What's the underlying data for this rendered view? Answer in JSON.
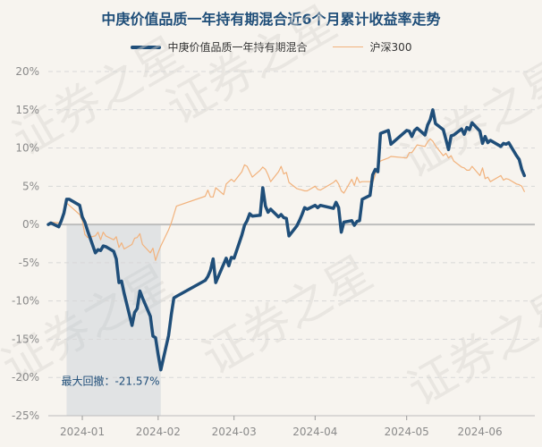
{
  "chart_data": {
    "type": "line",
    "title": "中庚价值品质一年持有期混合近6个月累计收益率走势",
    "ylim": [
      -25,
      20
    ],
    "yticks": [
      20,
      15,
      10,
      5,
      0,
      -5,
      -10,
      -15,
      -20,
      -25
    ],
    "ytick_labels": [
      "20%",
      "15%",
      "10%",
      "5%",
      "0%",
      "-5%",
      "-10%",
      "-15%",
      "-20%",
      "-25%"
    ],
    "xlim": [
      "2023-12-21",
      "2024-06-24"
    ],
    "xticks": [
      {
        "label": "2024-01",
        "date": "2024-01-03"
      },
      {
        "label": "2024-02",
        "date": "2024-02-01"
      },
      {
        "label": "2024-03",
        "date": "2024-03-01"
      },
      {
        "label": "2024-04",
        "date": "2024-04-01"
      },
      {
        "label": "2024-05",
        "date": "2024-05-06"
      },
      {
        "label": "2024-06",
        "date": "2024-06-03"
      }
    ],
    "series": [
      {
        "name": "中庚价值品质一年持有期混合",
        "color": "#1f4e79",
        "points": [
          [
            "2023-12-21",
            0.0
          ],
          [
            "2023-12-22",
            0.2
          ],
          [
            "2023-12-25",
            -0.3
          ],
          [
            "2023-12-26",
            0.5
          ],
          [
            "2023-12-27",
            1.5
          ],
          [
            "2023-12-28",
            3.3
          ],
          [
            "2023-12-29",
            3.3
          ],
          [
            "2024-01-02",
            2.5
          ],
          [
            "2024-01-03",
            1.0
          ],
          [
            "2024-01-04",
            0.3
          ],
          [
            "2024-01-05",
            -0.8
          ],
          [
            "2024-01-08",
            -3.7
          ],
          [
            "2024-01-09",
            -3.3
          ],
          [
            "2024-01-10",
            -3.4
          ],
          [
            "2024-01-11",
            -2.8
          ],
          [
            "2024-01-12",
            -2.9
          ],
          [
            "2024-01-15",
            -3.5
          ],
          [
            "2024-01-16",
            -4.5
          ],
          [
            "2024-01-17",
            -7.6
          ],
          [
            "2024-01-18",
            -7.4
          ],
          [
            "2024-01-19",
            -9.0
          ],
          [
            "2024-01-22",
            -13.2
          ],
          [
            "2024-01-23",
            -11.5
          ],
          [
            "2024-01-24",
            -11.0
          ],
          [
            "2024-01-25",
            -8.7
          ],
          [
            "2024-01-26",
            -9.6
          ],
          [
            "2024-01-29",
            -12.0
          ],
          [
            "2024-01-30",
            -14.6
          ],
          [
            "2024-01-31",
            -14.8
          ],
          [
            "2024-02-01",
            -17.0
          ],
          [
            "2024-02-02",
            -19.0
          ],
          [
            "2024-02-05",
            -14.5
          ],
          [
            "2024-02-06",
            -11.8
          ],
          [
            "2024-02-07",
            -9.6
          ],
          [
            "2024-02-08",
            -9.4
          ],
          [
            "2024-02-19",
            -7.3
          ],
          [
            "2024-02-20",
            -6.8
          ],
          [
            "2024-02-21",
            -6.0
          ],
          [
            "2024-02-22",
            -4.5
          ],
          [
            "2024-02-23",
            -7.6
          ],
          [
            "2024-02-26",
            -5.2
          ],
          [
            "2024-02-27",
            -4.4
          ],
          [
            "2024-02-28",
            -5.4
          ],
          [
            "2024-02-29",
            -4.3
          ],
          [
            "2024-03-01",
            -4.4
          ],
          [
            "2024-03-04",
            -1.4
          ],
          [
            "2024-03-05",
            -0.1
          ],
          [
            "2024-03-06",
            0.5
          ],
          [
            "2024-03-07",
            1.4
          ],
          [
            "2024-03-08",
            1.1
          ],
          [
            "2024-03-11",
            1.2
          ],
          [
            "2024-03-12",
            4.8
          ],
          [
            "2024-03-13",
            2.4
          ],
          [
            "2024-03-14",
            1.6
          ],
          [
            "2024-03-15",
            2.0
          ],
          [
            "2024-03-18",
            1.0
          ],
          [
            "2024-03-19",
            1.3
          ],
          [
            "2024-03-20",
            0.9
          ],
          [
            "2024-03-21",
            0.8
          ],
          [
            "2024-03-22",
            -1.5
          ],
          [
            "2024-03-25",
            -0.2
          ],
          [
            "2024-03-26",
            0.5
          ],
          [
            "2024-03-27",
            1.3
          ],
          [
            "2024-03-28",
            2.2
          ],
          [
            "2024-03-29",
            2.0
          ],
          [
            "2024-04-01",
            2.5
          ],
          [
            "2024-04-02",
            2.2
          ],
          [
            "2024-04-03",
            2.5
          ],
          [
            "2024-04-08",
            2.1
          ],
          [
            "2024-04-09",
            2.9
          ],
          [
            "2024-04-10",
            2.2
          ],
          [
            "2024-04-11",
            -1.0
          ],
          [
            "2024-04-12",
            0.3
          ],
          [
            "2024-04-15",
            0.5
          ],
          [
            "2024-04-16",
            -0.1
          ],
          [
            "2024-04-17",
            0.4
          ],
          [
            "2024-04-18",
            0.5
          ],
          [
            "2024-04-19",
            3.3
          ],
          [
            "2024-04-22",
            3.8
          ],
          [
            "2024-04-23",
            6.5
          ],
          [
            "2024-04-24",
            7.2
          ],
          [
            "2024-04-25",
            6.9
          ],
          [
            "2024-04-26",
            11.9
          ],
          [
            "2024-04-29",
            12.3
          ],
          [
            "2024-04-30",
            10.5
          ],
          [
            "2024-05-06",
            12.3
          ],
          [
            "2024-05-07",
            12.2
          ],
          [
            "2024-05-08",
            11.5
          ],
          [
            "2024-05-09",
            12.3
          ],
          [
            "2024-05-10",
            12.6
          ],
          [
            "2024-05-13",
            11.7
          ],
          [
            "2024-05-14",
            13.0
          ],
          [
            "2024-05-15",
            13.7
          ],
          [
            "2024-05-16",
            15.0
          ],
          [
            "2024-05-17",
            13.2
          ],
          [
            "2024-05-20",
            12.4
          ],
          [
            "2024-05-21",
            11.1
          ],
          [
            "2024-05-22",
            9.8
          ],
          [
            "2024-05-23",
            11.6
          ],
          [
            "2024-05-24",
            11.7
          ],
          [
            "2024-05-27",
            12.5
          ],
          [
            "2024-05-28",
            11.8
          ],
          [
            "2024-05-29",
            12.7
          ],
          [
            "2024-05-30",
            12.4
          ],
          [
            "2024-05-31",
            13.3
          ],
          [
            "2024-06-03",
            12.2
          ],
          [
            "2024-06-04",
            10.6
          ],
          [
            "2024-06-05",
            11.5
          ],
          [
            "2024-06-06",
            10.7
          ],
          [
            "2024-06-07",
            11.0
          ],
          [
            "2024-06-11",
            10.2
          ],
          [
            "2024-06-12",
            10.6
          ],
          [
            "2024-06-13",
            10.5
          ],
          [
            "2024-06-14",
            10.7
          ],
          [
            "2024-06-17",
            9.0
          ],
          [
            "2024-06-18",
            8.5
          ],
          [
            "2024-06-19",
            7.2
          ],
          [
            "2024-06-20",
            6.4
          ]
        ]
      },
      {
        "name": "沪深300",
        "color": "#f2b27c",
        "points": [
          [
            "2023-12-21",
            0.0
          ],
          [
            "2023-12-22",
            0.3
          ],
          [
            "2023-12-25",
            0.2
          ],
          [
            "2023-12-26",
            0.6
          ],
          [
            "2023-12-27",
            2.0
          ],
          [
            "2023-12-28",
            2.8
          ],
          [
            "2023-12-29",
            2.5
          ],
          [
            "2024-01-02",
            1.3
          ],
          [
            "2024-01-03",
            0.5
          ],
          [
            "2024-01-04",
            -1.3
          ],
          [
            "2024-01-05",
            -1.7
          ],
          [
            "2024-01-08",
            -1.5
          ],
          [
            "2024-01-09",
            -1.0
          ],
          [
            "2024-01-10",
            -2.0
          ],
          [
            "2024-01-11",
            -1.0
          ],
          [
            "2024-01-12",
            -1.5
          ],
          [
            "2024-01-15",
            -2.0
          ],
          [
            "2024-01-16",
            -1.6
          ],
          [
            "2024-01-17",
            -3.0
          ],
          [
            "2024-01-18",
            -2.4
          ],
          [
            "2024-01-19",
            -3.2
          ],
          [
            "2024-01-22",
            -2.6
          ],
          [
            "2024-01-23",
            -1.8
          ],
          [
            "2024-01-24",
            -1.7
          ],
          [
            "2024-01-25",
            -1.2
          ],
          [
            "2024-01-26",
            -2.6
          ],
          [
            "2024-01-29",
            -3.7
          ],
          [
            "2024-01-30",
            -3.1
          ],
          [
            "2024-01-31",
            -4.7
          ],
          [
            "2024-02-01",
            -3.7
          ],
          [
            "2024-02-02",
            -2.8
          ],
          [
            "2024-02-05",
            -0.7
          ],
          [
            "2024-02-06",
            0.2
          ],
          [
            "2024-02-07",
            1.3
          ],
          [
            "2024-02-08",
            2.4
          ],
          [
            "2024-02-19",
            3.7
          ],
          [
            "2024-02-20",
            4.5
          ],
          [
            "2024-02-21",
            3.6
          ],
          [
            "2024-02-22",
            3.6
          ],
          [
            "2024-02-23",
            4.8
          ],
          [
            "2024-02-26",
            3.9
          ],
          [
            "2024-02-27",
            5.3
          ],
          [
            "2024-02-28",
            5.6
          ],
          [
            "2024-02-29",
            5.9
          ],
          [
            "2024-03-01",
            5.6
          ],
          [
            "2024-03-04",
            6.9
          ],
          [
            "2024-03-05",
            7.8
          ],
          [
            "2024-03-06",
            7.6
          ],
          [
            "2024-03-07",
            6.9
          ],
          [
            "2024-03-08",
            6.2
          ],
          [
            "2024-03-11",
            7.1
          ],
          [
            "2024-03-12",
            7.5
          ],
          [
            "2024-03-13",
            7.2
          ],
          [
            "2024-03-14",
            6.5
          ],
          [
            "2024-03-15",
            5.6
          ],
          [
            "2024-03-18",
            6.9
          ],
          [
            "2024-03-19",
            7.6
          ],
          [
            "2024-03-20",
            6.6
          ],
          [
            "2024-03-21",
            6.8
          ],
          [
            "2024-03-22",
            5.5
          ],
          [
            "2024-03-25",
            4.7
          ],
          [
            "2024-03-26",
            4.6
          ],
          [
            "2024-03-27",
            4.5
          ],
          [
            "2024-03-28",
            4.4
          ],
          [
            "2024-03-29",
            4.4
          ],
          [
            "2024-04-01",
            5.0
          ],
          [
            "2024-04-02",
            4.6
          ],
          [
            "2024-04-03",
            4.5
          ],
          [
            "2024-04-08",
            5.5
          ],
          [
            "2024-04-09",
            5.8
          ],
          [
            "2024-04-10",
            5.3
          ],
          [
            "2024-04-11",
            4.4
          ],
          [
            "2024-04-12",
            4.1
          ],
          [
            "2024-04-15",
            5.9
          ],
          [
            "2024-04-16",
            5.1
          ],
          [
            "2024-04-17",
            6.2
          ],
          [
            "2024-04-18",
            5.5
          ],
          [
            "2024-04-19",
            5.6
          ],
          [
            "2024-04-22",
            5.6
          ],
          [
            "2024-04-23",
            5.5
          ],
          [
            "2024-04-24",
            6.5
          ],
          [
            "2024-04-25",
            7.8
          ],
          [
            "2024-04-26",
            8.3
          ],
          [
            "2024-04-29",
            8.7
          ],
          [
            "2024-04-30",
            8.9
          ],
          [
            "2024-05-06",
            8.7
          ],
          [
            "2024-05-07",
            9.4
          ],
          [
            "2024-05-08",
            9.4
          ],
          [
            "2024-05-09",
            9.9
          ],
          [
            "2024-05-10",
            10.4
          ],
          [
            "2024-05-13",
            10.2
          ],
          [
            "2024-05-14",
            10.8
          ],
          [
            "2024-05-15",
            11.2
          ],
          [
            "2024-05-16",
            10.9
          ],
          [
            "2024-05-17",
            10.3
          ],
          [
            "2024-05-20",
            9.0
          ],
          [
            "2024-05-21",
            9.3
          ],
          [
            "2024-05-22",
            8.7
          ],
          [
            "2024-05-23",
            9.0
          ],
          [
            "2024-05-24",
            8.3
          ],
          [
            "2024-05-27",
            7.5
          ],
          [
            "2024-05-28",
            7.4
          ],
          [
            "2024-05-29",
            7.1
          ],
          [
            "2024-05-30",
            7.1
          ],
          [
            "2024-05-31",
            7.6
          ],
          [
            "2024-06-03",
            6.4
          ],
          [
            "2024-06-04",
            7.4
          ],
          [
            "2024-06-05",
            6.0
          ],
          [
            "2024-06-06",
            6.2
          ],
          [
            "2024-06-07",
            5.6
          ],
          [
            "2024-06-11",
            6.4
          ],
          [
            "2024-06-12",
            5.8
          ],
          [
            "2024-06-13",
            6.0
          ],
          [
            "2024-06-14",
            5.9
          ],
          [
            "2024-06-17",
            5.3
          ],
          [
            "2024-06-18",
            5.2
          ],
          [
            "2024-06-19",
            5.0
          ],
          [
            "2024-06-20",
            4.3
          ]
        ]
      }
    ],
    "max_drawdown": {
      "label": "最大回撤：-21.57%",
      "start_date": "2023-12-28",
      "end_date": "2024-02-02",
      "color": "#b7c3d2"
    },
    "watermark": "证券之星",
    "grid": "horizontal-dashed"
  }
}
